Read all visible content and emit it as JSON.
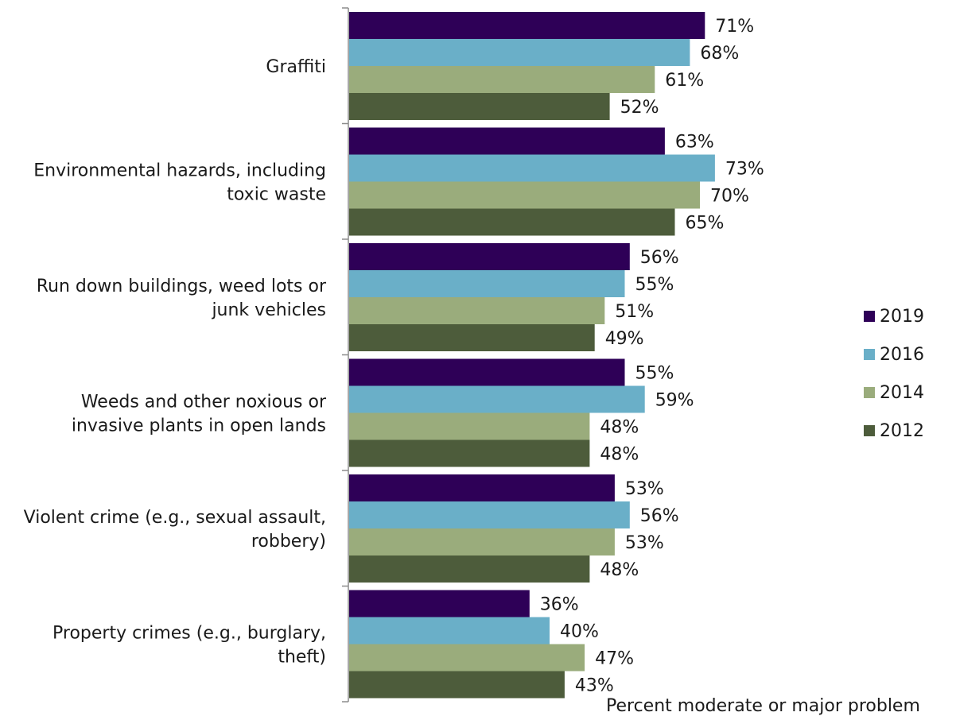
{
  "chart_data": {
    "type": "bar",
    "orientation": "horizontal",
    "xlabel": "Percent moderate or major problem",
    "xlim": [
      0,
      100
    ],
    "categories": [
      [
        "Graffiti"
      ],
      [
        "Environmental hazards, including",
        "toxic waste"
      ],
      [
        "Run down buildings, weed lots or",
        "junk vehicles"
      ],
      [
        "Weeds and other noxious or",
        "invasive plants in open lands"
      ],
      [
        "Violent crime (e.g., sexual assault,",
        "robbery)"
      ],
      [
        "Property crimes (e.g., burglary,",
        "theft)"
      ]
    ],
    "series": [
      {
        "name": "2019",
        "color": "#2e0057",
        "values": [
          71,
          63,
          56,
          55,
          53,
          36
        ]
      },
      {
        "name": "2016",
        "color": "#6aafc8",
        "values": [
          68,
          73,
          55,
          59,
          56,
          40
        ]
      },
      {
        "name": "2014",
        "color": "#9aac7c",
        "values": [
          61,
          70,
          51,
          48,
          53,
          47
        ]
      },
      {
        "name": "2012",
        "color": "#4d5c3b",
        "values": [
          52,
          65,
          49,
          48,
          48,
          43
        ]
      }
    ],
    "value_suffix": "%",
    "legend_position": "right",
    "grid": false
  }
}
